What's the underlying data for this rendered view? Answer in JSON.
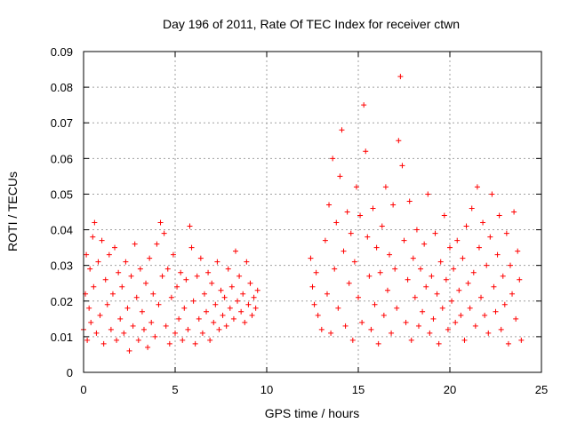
{
  "chart_data": {
    "type": "scatter",
    "title": "Day 196 of 2011, Rate Of TEC Index for receiver ctwn",
    "xlabel": "GPS time / hours",
    "ylabel": "ROTI / TECUs",
    "xlim": [
      0,
      25
    ],
    "ylim": [
      0,
      0.09
    ],
    "x_ticks": [
      0,
      5,
      10,
      15,
      20,
      25
    ],
    "x_tick_labels": [
      "0",
      "5",
      "10",
      "15",
      "20",
      "25"
    ],
    "y_ticks": [
      0,
      0.01,
      0.02,
      0.03,
      0.04,
      0.05,
      0.06,
      0.07,
      0.08,
      0.09
    ],
    "y_tick_labels": [
      "0",
      "0.01",
      "0.02",
      "0.03",
      "0.04",
      "0.05",
      "0.06",
      "0.07",
      "0.08",
      "0.09"
    ],
    "grid": true,
    "marker": "+",
    "color": "#ff0000",
    "series": [
      {
        "points": [
          [
            0.0,
            0.012
          ],
          [
            0.1,
            0.022
          ],
          [
            0.15,
            0.033
          ],
          [
            0.2,
            0.009
          ],
          [
            0.3,
            0.018
          ],
          [
            0.35,
            0.029
          ],
          [
            0.4,
            0.014
          ],
          [
            0.5,
            0.038
          ],
          [
            0.55,
            0.024
          ],
          [
            0.6,
            0.042
          ],
          [
            0.7,
            0.011
          ],
          [
            0.8,
            0.031
          ],
          [
            0.9,
            0.016
          ],
          [
            1.0,
            0.037
          ],
          [
            1.1,
            0.008
          ],
          [
            1.2,
            0.026
          ],
          [
            1.3,
            0.019
          ],
          [
            1.4,
            0.033
          ],
          [
            1.5,
            0.012
          ],
          [
            1.6,
            0.022
          ],
          [
            1.7,
            0.035
          ],
          [
            1.8,
            0.009
          ],
          [
            1.9,
            0.028
          ],
          [
            2.0,
            0.015
          ],
          [
            2.1,
            0.024
          ],
          [
            2.2,
            0.011
          ],
          [
            2.3,
            0.031
          ],
          [
            2.4,
            0.018
          ],
          [
            2.5,
            0.006
          ],
          [
            2.6,
            0.027
          ],
          [
            2.7,
            0.013
          ],
          [
            2.8,
            0.036
          ],
          [
            2.9,
            0.021
          ],
          [
            3.0,
            0.009
          ],
          [
            3.1,
            0.029
          ],
          [
            3.2,
            0.017
          ],
          [
            3.3,
            0.012
          ],
          [
            3.4,
            0.025
          ],
          [
            3.5,
            0.007
          ],
          [
            3.6,
            0.032
          ],
          [
            3.7,
            0.014
          ],
          [
            3.8,
            0.022
          ],
          [
            3.9,
            0.01
          ],
          [
            4.0,
            0.036
          ],
          [
            4.1,
            0.019
          ],
          [
            4.2,
            0.042
          ],
          [
            4.3,
            0.027
          ],
          [
            4.4,
            0.039
          ],
          [
            4.5,
            0.013
          ],
          [
            4.6,
            0.029
          ],
          [
            4.7,
            0.008
          ],
          [
            4.8,
            0.021
          ],
          [
            4.9,
            0.033
          ],
          [
            5.0,
            0.011
          ],
          [
            5.1,
            0.024
          ],
          [
            5.2,
            0.015
          ],
          [
            5.3,
            0.028
          ],
          [
            5.4,
            0.009
          ],
          [
            5.5,
            0.018
          ],
          [
            5.6,
            0.026
          ],
          [
            5.7,
            0.012
          ],
          [
            5.8,
            0.041
          ],
          [
            5.9,
            0.035
          ],
          [
            6.0,
            0.02
          ],
          [
            6.1,
            0.008
          ],
          [
            6.2,
            0.027
          ],
          [
            6.3,
            0.015
          ],
          [
            6.4,
            0.032
          ],
          [
            6.5,
            0.011
          ],
          [
            6.6,
            0.022
          ],
          [
            6.7,
            0.017
          ],
          [
            6.8,
            0.028
          ],
          [
            6.9,
            0.009
          ],
          [
            7.0,
            0.025
          ],
          [
            7.1,
            0.014
          ],
          [
            7.2,
            0.019
          ],
          [
            7.3,
            0.031
          ],
          [
            7.4,
            0.012
          ],
          [
            7.5,
            0.023
          ],
          [
            7.6,
            0.016
          ],
          [
            7.7,
            0.021
          ],
          [
            7.8,
            0.013
          ],
          [
            7.9,
            0.029
          ],
          [
            8.0,
            0.018
          ],
          [
            8.1,
            0.024
          ],
          [
            8.2,
            0.015
          ],
          [
            8.3,
            0.034
          ],
          [
            8.4,
            0.02
          ],
          [
            8.5,
            0.027
          ],
          [
            8.6,
            0.017
          ],
          [
            8.7,
            0.022
          ],
          [
            8.8,
            0.014
          ],
          [
            8.9,
            0.031
          ],
          [
            9.0,
            0.019
          ],
          [
            9.1,
            0.025
          ],
          [
            9.2,
            0.016
          ],
          [
            9.3,
            0.021
          ],
          [
            9.4,
            0.018
          ],
          [
            9.5,
            0.023
          ],
          [
            12.4,
            0.032
          ],
          [
            12.5,
            0.024
          ],
          [
            12.6,
            0.019
          ],
          [
            12.7,
            0.028
          ],
          [
            12.8,
            0.016
          ],
          [
            13.0,
            0.012
          ],
          [
            13.2,
            0.037
          ],
          [
            13.3,
            0.022
          ],
          [
            13.4,
            0.047
          ],
          [
            13.5,
            0.011
          ],
          [
            13.6,
            0.06
          ],
          [
            13.7,
            0.029
          ],
          [
            13.8,
            0.042
          ],
          [
            13.9,
            0.018
          ],
          [
            14.0,
            0.055
          ],
          [
            14.1,
            0.068
          ],
          [
            14.2,
            0.034
          ],
          [
            14.3,
            0.013
          ],
          [
            14.4,
            0.045
          ],
          [
            14.5,
            0.025
          ],
          [
            14.6,
            0.039
          ],
          [
            14.7,
            0.009
          ],
          [
            14.8,
            0.031
          ],
          [
            14.9,
            0.052
          ],
          [
            15.0,
            0.021
          ],
          [
            15.1,
            0.044
          ],
          [
            15.2,
            0.014
          ],
          [
            15.3,
            0.075
          ],
          [
            15.4,
            0.062
          ],
          [
            15.5,
            0.038
          ],
          [
            15.6,
            0.027
          ],
          [
            15.7,
            0.012
          ],
          [
            15.8,
            0.046
          ],
          [
            15.9,
            0.019
          ],
          [
            16.0,
            0.035
          ],
          [
            16.1,
            0.008
          ],
          [
            16.2,
            0.028
          ],
          [
            16.3,
            0.041
          ],
          [
            16.4,
            0.016
          ],
          [
            16.5,
            0.052
          ],
          [
            16.6,
            0.023
          ],
          [
            16.7,
            0.033
          ],
          [
            16.8,
            0.011
          ],
          [
            16.9,
            0.047
          ],
          [
            17.0,
            0.029
          ],
          [
            17.1,
            0.018
          ],
          [
            17.2,
            0.065
          ],
          [
            17.3,
            0.083
          ],
          [
            17.4,
            0.058
          ],
          [
            17.5,
            0.037
          ],
          [
            17.6,
            0.014
          ],
          [
            17.7,
            0.026
          ],
          [
            17.8,
            0.048
          ],
          [
            17.9,
            0.009
          ],
          [
            18.0,
            0.032
          ],
          [
            18.1,
            0.021
          ],
          [
            18.2,
            0.04
          ],
          [
            18.3,
            0.013
          ],
          [
            18.4,
            0.029
          ],
          [
            18.5,
            0.017
          ],
          [
            18.6,
            0.036
          ],
          [
            18.7,
            0.024
          ],
          [
            18.8,
            0.05
          ],
          [
            18.9,
            0.011
          ],
          [
            19.0,
            0.027
          ],
          [
            19.1,
            0.015
          ],
          [
            19.2,
            0.039
          ],
          [
            19.3,
            0.022
          ],
          [
            19.4,
            0.008
          ],
          [
            19.5,
            0.031
          ],
          [
            19.6,
            0.018
          ],
          [
            19.7,
            0.044
          ],
          [
            19.8,
            0.026
          ],
          [
            19.9,
            0.012
          ],
          [
            20.0,
            0.035
          ],
          [
            20.1,
            0.02
          ],
          [
            20.2,
            0.029
          ],
          [
            20.3,
            0.014
          ],
          [
            20.4,
            0.037
          ],
          [
            20.5,
            0.023
          ],
          [
            20.6,
            0.016
          ],
          [
            20.7,
            0.032
          ],
          [
            20.8,
            0.009
          ],
          [
            20.9,
            0.041
          ],
          [
            21.0,
            0.025
          ],
          [
            21.1,
            0.018
          ],
          [
            21.2,
            0.046
          ],
          [
            21.3,
            0.028
          ],
          [
            21.4,
            0.013
          ],
          [
            21.5,
            0.052
          ],
          [
            21.6,
            0.035
          ],
          [
            21.7,
            0.021
          ],
          [
            21.8,
            0.042
          ],
          [
            21.9,
            0.016
          ],
          [
            22.0,
            0.03
          ],
          [
            22.1,
            0.011
          ],
          [
            22.2,
            0.038
          ],
          [
            22.3,
            0.05
          ],
          [
            22.4,
            0.024
          ],
          [
            22.5,
            0.017
          ],
          [
            22.6,
            0.033
          ],
          [
            22.7,
            0.044
          ],
          [
            22.8,
            0.012
          ],
          [
            22.9,
            0.027
          ],
          [
            23.0,
            0.019
          ],
          [
            23.1,
            0.039
          ],
          [
            23.2,
            0.008
          ],
          [
            23.3,
            0.03
          ],
          [
            23.4,
            0.022
          ],
          [
            23.5,
            0.045
          ],
          [
            23.6,
            0.015
          ],
          [
            23.7,
            0.034
          ],
          [
            23.8,
            0.026
          ],
          [
            23.9,
            0.009
          ]
        ]
      }
    ]
  }
}
